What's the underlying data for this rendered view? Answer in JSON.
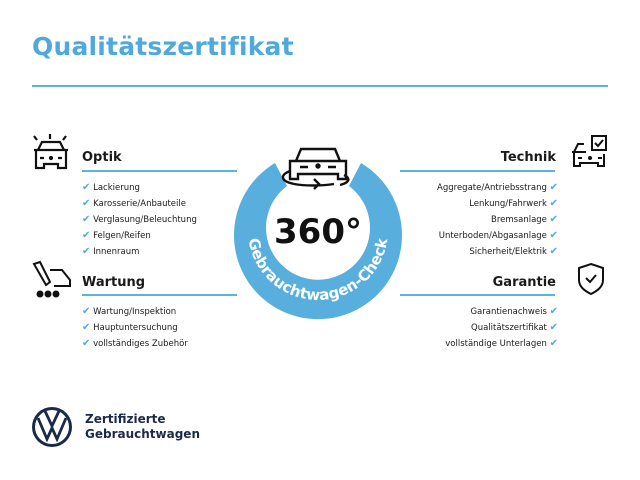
{
  "title": "Qualitätszertifikat",
  "center": {
    "big": "360°",
    "ring_text": "Gebrauchtwagen-Check",
    "ring_color": "#58afdd"
  },
  "check_icon": "✔",
  "sections": {
    "optik": {
      "title": "Optik",
      "icon": "car-lights-icon",
      "items": [
        "Lackierung",
        "Karosserie/Anbauteile",
        "Verglasung/Beleuchtung",
        "Felgen/Reifen",
        "Innenraum"
      ]
    },
    "wartung": {
      "title": "Wartung",
      "icon": "service-tools-icon",
      "items": [
        "Wartung/Inspektion",
        "Hauptuntersuchung",
        "vollständiges Zubehör"
      ]
    },
    "technik": {
      "title": "Technik",
      "icon": "car-checkbox-icon",
      "items": [
        "Aggregate/Antriebsstrang",
        "Lenkung/Fahrwerk",
        "Bremsanlage",
        "Unterboden/Abgasanlage",
        "Sicherheit/Elektrik"
      ]
    },
    "garantie": {
      "title": "Garantie",
      "icon": "shield-check-icon",
      "items": [
        "Garantienachweis",
        "Qualitätszertifikat",
        "vollständige Unterlagen"
      ]
    }
  },
  "brand": {
    "line1": "Zertifizierte",
    "line2": "Gebrauchtwagen",
    "color": "#1a2a4a"
  }
}
